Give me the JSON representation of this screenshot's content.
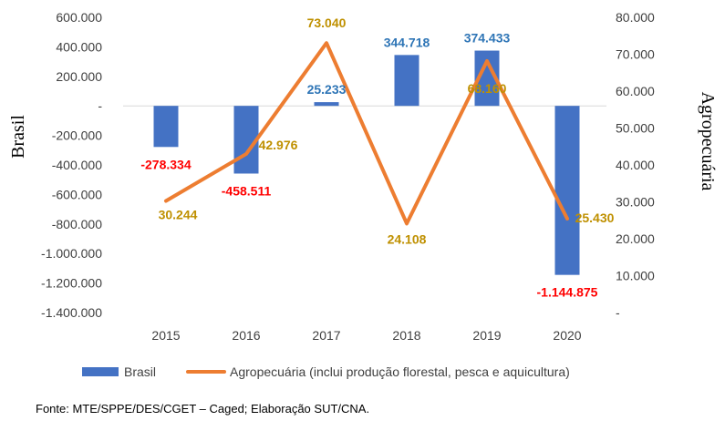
{
  "chart_data": {
    "type": "bar+line",
    "categories": [
      "2015",
      "2016",
      "2017",
      "2018",
      "2019",
      "2020"
    ],
    "series": [
      {
        "name": "Brasil",
        "chart": "bar",
        "axis": "left",
        "color": "#4472C4",
        "values": [
          -278334,
          -458511,
          25233,
          344718,
          374433,
          -1144875
        ],
        "labels": [
          "-278.334",
          "-458.511",
          "25.233",
          "344.718",
          "374.433",
          "-1.144.875"
        ],
        "label_colors": [
          "#FF0000",
          "#FF0000",
          "#2E75B6",
          "#2E75B6",
          "#2E75B6",
          "#FF0000"
        ]
      },
      {
        "name": "Agropecuária (inclui produção florestal, pesca e aquicultura)",
        "chart": "line",
        "axis": "right",
        "color": "#ED7D31",
        "values": [
          30244,
          42976,
          73040,
          24108,
          68160,
          25430
        ],
        "labels": [
          "30.244",
          "42.976",
          "73.040",
          "24.108",
          "68.160",
          "25.430"
        ],
        "label_color": "#BF9000"
      }
    ],
    "left_axis": {
      "title": "Brasil",
      "min": -1400000,
      "max": 600000,
      "step": 200000,
      "ticks": [
        "600.000",
        "400.000",
        "200.000",
        "-",
        "-200.000",
        "-400.000",
        "-600.000",
        "-800.000",
        "-1.000.000",
        "-1.200.000",
        "-1.400.000"
      ]
    },
    "right_axis": {
      "title": "Agropecuária",
      "min": 0,
      "max": 80000,
      "step": 10000,
      "ticks": [
        "80.000",
        "70.000",
        "60.000",
        "50.000",
        "40.000",
        "30.000",
        "20.000",
        "10.000",
        "-"
      ]
    },
    "legend": "bottom"
  },
  "source_text": "Fonte: MTE/SPPE/DES/CGET – Caged; Elaboração SUT/CNA."
}
